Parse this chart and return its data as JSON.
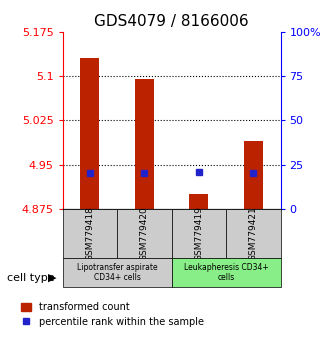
{
  "title": "GDS4079 / 8166006",
  "samples": [
    "GSM779418",
    "GSM779420",
    "GSM779419",
    "GSM779421"
  ],
  "red_values": [
    5.13,
    5.095,
    4.9,
    4.99
  ],
  "blue_values": [
    4.936,
    4.936,
    4.938,
    4.936
  ],
  "ylim_left": [
    4.875,
    5.175
  ],
  "ylim_right": [
    0,
    100
  ],
  "yticks_left": [
    4.875,
    4.95,
    5.025,
    5.1,
    5.175
  ],
  "yticks_right": [
    0,
    25,
    50,
    75,
    100
  ],
  "ytick_labels_left": [
    "4.875",
    "4.95",
    "5.025",
    "5.1",
    "5.175"
  ],
  "ytick_labels_right": [
    "0",
    "25",
    "50",
    "75",
    "100%"
  ],
  "hlines": [
    5.1,
    5.025,
    4.95
  ],
  "bar_width": 0.35,
  "bar_color": "#bb2200",
  "blue_color": "#2222cc",
  "cell_types": [
    {
      "label": "Lipotransfer aspirate\nCD34+ cells",
      "samples": [
        0,
        1
      ],
      "color": "#cccccc"
    },
    {
      "label": "Leukapheresis CD34+\ncells",
      "samples": [
        2,
        3
      ],
      "color": "#88ee88"
    }
  ],
  "cell_type_label": "cell type",
  "legend_red": "transformed count",
  "legend_blue": "percentile rank within the sample",
  "title_fontsize": 11,
  "tick_fontsize": 8,
  "label_fontsize": 8
}
